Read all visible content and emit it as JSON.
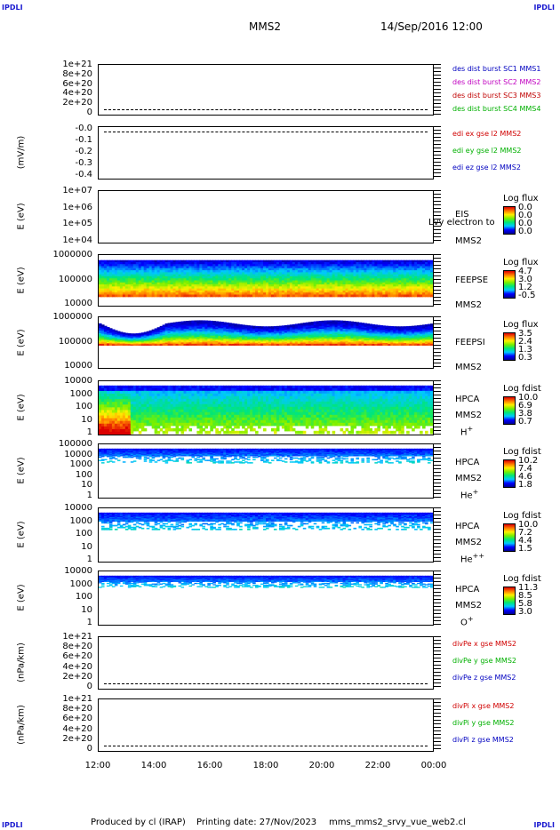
{
  "corners": {
    "tl": "IPDLI",
    "tr": "IPDLI",
    "bl": "IPDLI",
    "br": "IPDLI"
  },
  "header": {
    "title": "MMS2",
    "datetime": "14/Sep/2016 12:00"
  },
  "footer": {
    "produced": "Produced by cl (IRAP)",
    "printing": "Printing date: 27/Nov/2023",
    "file": "mms_mms2_srvy_vue_web2.cl"
  },
  "xaxis": {
    "ticks": [
      "12:00",
      "14:00",
      "16:00",
      "18:00",
      "20:00",
      "22:00",
      "00:00"
    ]
  },
  "panels": [
    {
      "ylabel": "",
      "yticks": [
        "1e+21",
        "8e+20",
        "6e+20",
        "4e+20",
        "2e+20",
        "0"
      ],
      "legend": [
        {
          "text": "des dist burst SC1 MMS1",
          "color": "#0000c0"
        },
        {
          "text": "des dist burst SC2 MMS2",
          "color": "#c000c0"
        },
        {
          "text": "des dist burst SC3 MMS3",
          "color": "#c00000"
        },
        {
          "text": "des dist burst SC4 MMS4",
          "color": "#00b000"
        }
      ]
    },
    {
      "ylabel": "(mV/m)",
      "yticks": [
        "-0.0",
        "-0.1",
        "-0.2",
        "-0.3",
        "-0.4"
      ],
      "legend": [
        {
          "text": "edi ex gse l2 MMS2",
          "color": "#d00000"
        },
        {
          "text": "edi ey gse l2 MMS2",
          "color": "#00b000"
        },
        {
          "text": "edi ez gse l2 MMS2",
          "color": "#0000c0"
        }
      ]
    },
    {
      "ylabel": "E (eV)",
      "yticks": [
        "1e+07",
        "1e+06",
        "1e+05",
        "1e+04"
      ],
      "side": [
        "EIS",
        "MMS2"
      ],
      "overlay": "Lvy electron to",
      "cbar": {
        "title": "Log flux",
        "vals": [
          "0.0",
          "0.0",
          "0.0",
          "0.0"
        ]
      }
    },
    {
      "ylabel": "E (eV)",
      "yticks": [
        "1000000",
        "100000",
        "10000"
      ],
      "side": [
        "FEEPSE",
        "MMS2"
      ],
      "cbar": {
        "title": "Log flux",
        "vals": [
          "4.7",
          "3.0",
          "1.2",
          "-0.5"
        ]
      }
    },
    {
      "ylabel": "E (eV)",
      "yticks": [
        "1000000",
        "100000",
        "10000"
      ],
      "side": [
        "FEEPSI",
        "MMS2"
      ],
      "cbar": {
        "title": "Log flux",
        "vals": [
          "3.5",
          "2.4",
          "1.3",
          "0.3"
        ]
      }
    },
    {
      "ylabel": "E (eV)",
      "yticks": [
        "10000",
        "1000",
        "100",
        "10",
        "1"
      ],
      "side": [
        "HPCA",
        "MMS2"
      ],
      "species": "H",
      "sup": "+",
      "cbar": {
        "title": "Log fdist",
        "vals": [
          "10.0",
          "6.9",
          "3.8",
          "0.7"
        ]
      }
    },
    {
      "ylabel": "E (eV)",
      "yticks": [
        "100000",
        "10000",
        "1000",
        "100",
        "10",
        "1"
      ],
      "side": [
        "HPCA",
        "MMS2"
      ],
      "species": "He",
      "sup": "+",
      "cbar": {
        "title": "Log fdist",
        "vals": [
          "10.2",
          "7.4",
          "4.6",
          "1.8"
        ]
      }
    },
    {
      "ylabel": "E (eV)",
      "yticks": [
        "10000",
        "1000",
        "100",
        "10",
        "1"
      ],
      "side": [
        "HPCA",
        "MMS2"
      ],
      "species": "He",
      "sup": "++",
      "cbar": {
        "title": "Log fdist",
        "vals": [
          "10.0",
          "7.2",
          "4.4",
          "1.5"
        ]
      }
    },
    {
      "ylabel": "E (eV)",
      "yticks": [
        "10000",
        "1000",
        "100",
        "10",
        "1"
      ],
      "side": [
        "HPCA",
        "MMS2"
      ],
      "species": "O",
      "sup": "+",
      "cbar": {
        "title": "Log fdist",
        "vals": [
          "11.3",
          "8.5",
          "5.8",
          "3.0"
        ]
      }
    },
    {
      "ylabel": "(nPa/km)",
      "yticks": [
        "1e+21",
        "8e+20",
        "6e+20",
        "4e+20",
        "2e+20",
        "0"
      ],
      "legend": [
        {
          "text": "divPe x gse MMS2",
          "color": "#d00000"
        },
        {
          "text": "divPe y gse MMS2",
          "color": "#00b000"
        },
        {
          "text": "divPe z gse MMS2",
          "color": "#0000c0"
        }
      ]
    },
    {
      "ylabel": "(nPa/km)",
      "yticks": [
        "1e+21",
        "8e+20",
        "6e+20",
        "4e+20",
        "2e+20",
        "0"
      ],
      "legend": [
        {
          "text": "divPi x gse MMS2",
          "color": "#d00000"
        },
        {
          "text": "divPi y gse MMS2",
          "color": "#00b000"
        },
        {
          "text": "divPi z gse MMS2",
          "color": "#0000c0"
        }
      ]
    }
  ],
  "chart_data": {
    "type": "heatmap",
    "title": "MMS2",
    "xlabel": "",
    "x": [
      "12:00",
      "14:00",
      "16:00",
      "18:00",
      "20:00",
      "22:00",
      "00:00"
    ],
    "colormap": "rainbow",
    "grid": false
  }
}
